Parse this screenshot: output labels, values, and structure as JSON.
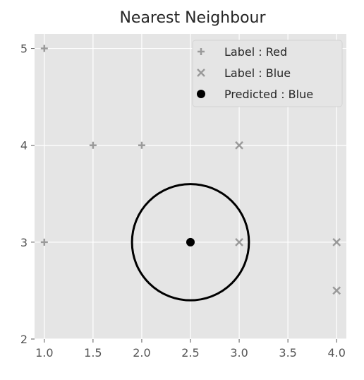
{
  "chart_data": {
    "type": "scatter",
    "title": "Nearest Neighbour",
    "xlabel": "",
    "ylabel": "",
    "xlim": [
      0.9,
      4.1
    ],
    "ylim": [
      2.0,
      5.15
    ],
    "xticks": [
      "1.0",
      "1.5",
      "2.0",
      "2.5",
      "3.0",
      "3.5",
      "4.0"
    ],
    "yticks": [
      "2",
      "3",
      "4",
      "5"
    ],
    "grid": true,
    "legend_position": "top-right",
    "series": [
      {
        "name": "Label : Red",
        "marker": "plus",
        "color": "#9a9a9a",
        "points": [
          [
            1.0,
            5.0
          ],
          [
            1.5,
            4.0
          ],
          [
            2.0,
            4.0
          ],
          [
            1.0,
            3.0
          ]
        ]
      },
      {
        "name": "Label : Blue",
        "marker": "x",
        "color": "#9a9a9a",
        "points": [
          [
            3.0,
            4.0
          ],
          [
            3.0,
            3.0
          ],
          [
            4.0,
            3.0
          ],
          [
            4.0,
            2.5
          ]
        ]
      },
      {
        "name": "Predicted : Blue",
        "marker": "dot",
        "color": "#000000",
        "points": [
          [
            2.5,
            3.0
          ]
        ]
      }
    ],
    "annotations": [
      {
        "type": "circle",
        "center": [
          2.5,
          3.0
        ],
        "radius": 0.6,
        "color": "#000000"
      }
    ]
  }
}
